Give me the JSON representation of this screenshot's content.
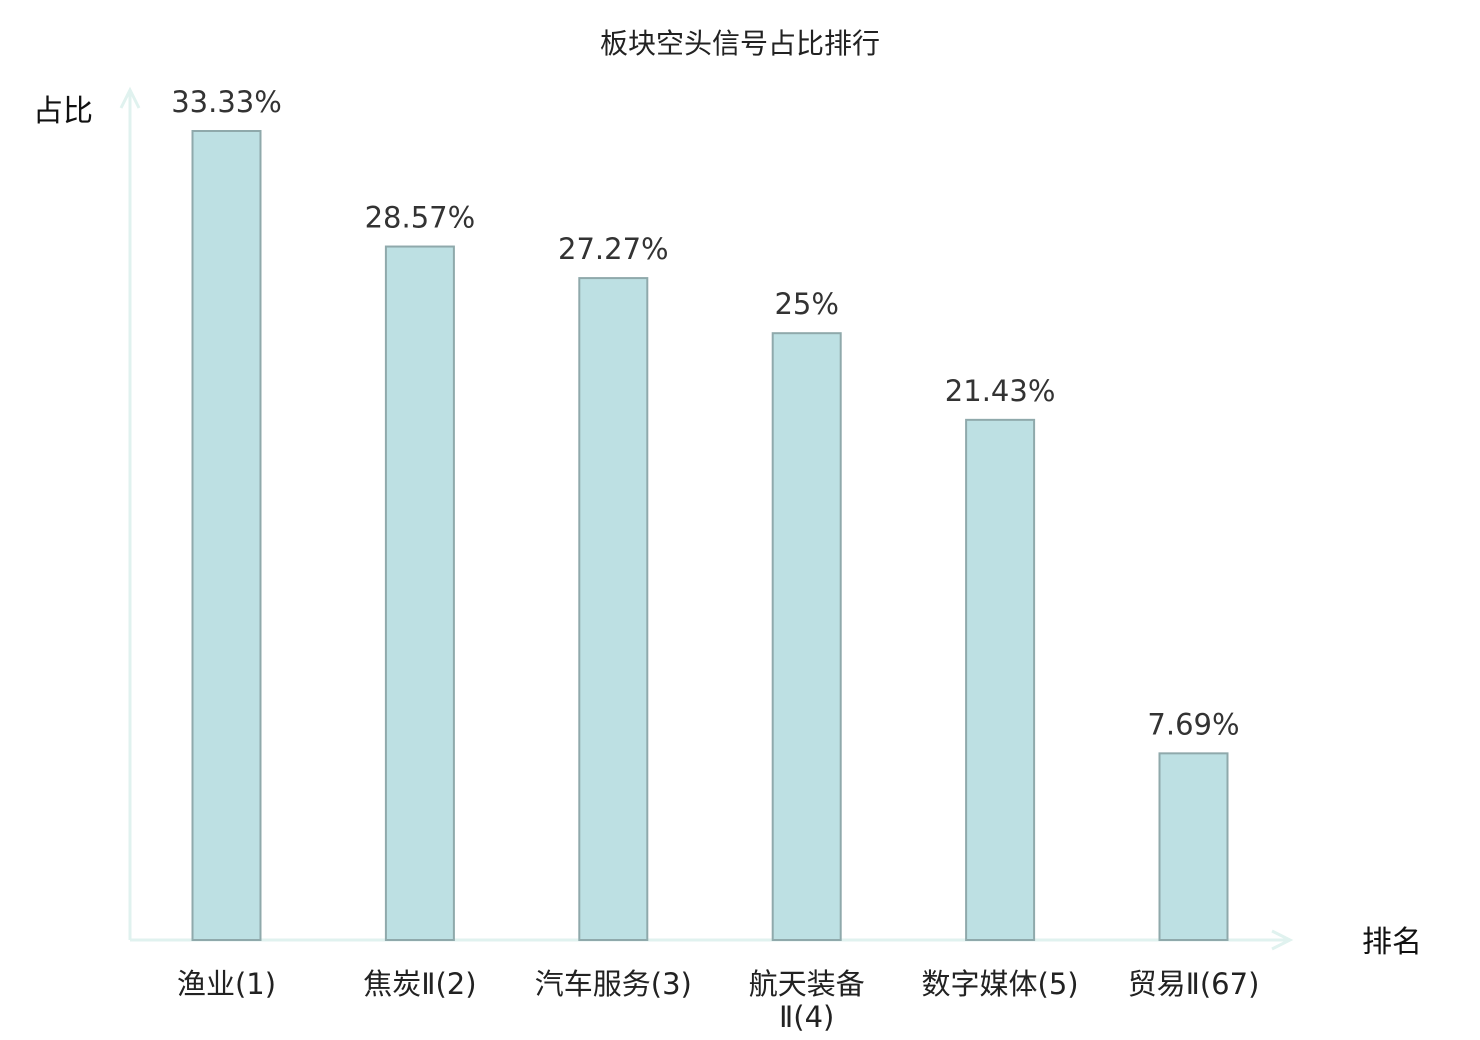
{
  "chart_data": {
    "type": "bar",
    "title": "板块空头信号占比排行",
    "ylabel": "占比",
    "xlabel": "排名",
    "categories": [
      [
        "渔业(1)"
      ],
      [
        "焦炭Ⅱ(2)"
      ],
      [
        "汽车服务(3)"
      ],
      [
        "航天装备",
        "Ⅱ(4)"
      ],
      [
        "数字媒体(5)"
      ],
      [
        "贸易Ⅱ(67)"
      ]
    ],
    "values": [
      33.33,
      28.57,
      27.27,
      25,
      21.43,
      7.69
    ],
    "value_labels": [
      "33.33%",
      "28.57%",
      "27.27%",
      "25%",
      "21.43%",
      "7.69%"
    ],
    "ylim": [
      0,
      33.33
    ],
    "grid": false,
    "colors": {
      "bar_fill": "#bde0e3",
      "bar_stroke": "#8fa9ab",
      "axis": "#e0f2ef",
      "highlight_label": "#d0161b",
      "default_label": "#222222"
    },
    "highlight_index": 5
  }
}
